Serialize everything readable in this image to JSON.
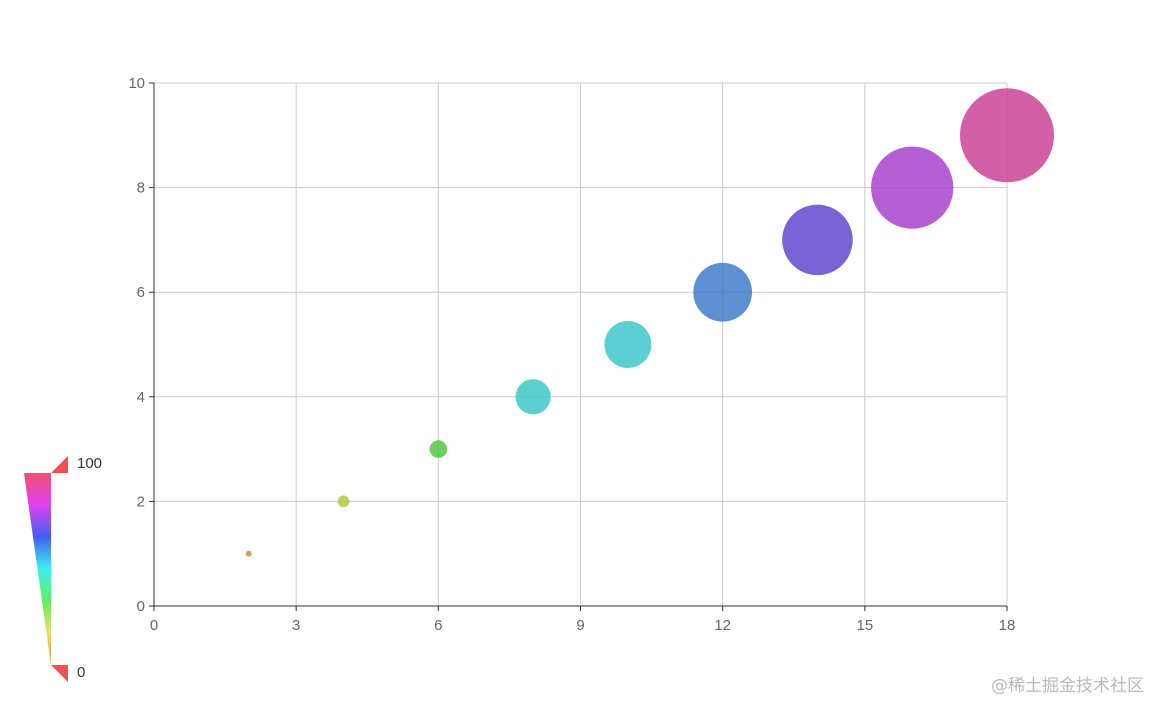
{
  "chart_data": {
    "type": "scatter",
    "title": "",
    "xlabel": "",
    "ylabel": "",
    "xlim": [
      0,
      18
    ],
    "ylim": [
      0,
      10
    ],
    "x_ticks": [
      "0",
      "3",
      "6",
      "9",
      "12",
      "15",
      "18"
    ],
    "y_ticks": [
      "0",
      "2",
      "4",
      "6",
      "8",
      "10"
    ],
    "grid": true,
    "series": [
      {
        "points": [
          {
            "x": 2,
            "y": 1,
            "size": 5,
            "color": "#c8893b"
          },
          {
            "x": 4,
            "y": 2,
            "size": 10,
            "color": "#a7c937"
          },
          {
            "x": 6,
            "y": 3,
            "size": 15,
            "color": "#4cc43a"
          },
          {
            "x": 8,
            "y": 4,
            "size": 30,
            "color": "#38c5c5"
          },
          {
            "x": 10,
            "y": 5,
            "size": 40,
            "color": "#38c5c8"
          },
          {
            "x": 12,
            "y": 6,
            "size": 50,
            "color": "#3b76c6"
          },
          {
            "x": 14,
            "y": 7,
            "size": 60,
            "color": "#5b3fc9"
          },
          {
            "x": 16,
            "y": 8,
            "size": 70,
            "color": "#a53ccb"
          },
          {
            "x": 18,
            "y": 9,
            "size": 80,
            "color": "#c93c92"
          }
        ]
      }
    ],
    "visual_map": {
      "min_label": "0",
      "max_label": "100",
      "placement": "bottom-left",
      "handle_color": "#f05050",
      "gradient_colors": [
        "#d9943a",
        "#f0e060",
        "#60f060",
        "#40f0f0",
        "#4060f0",
        "#e040f0",
        "#f05070"
      ]
    }
  },
  "watermark": "@稀土掘金技术社区"
}
